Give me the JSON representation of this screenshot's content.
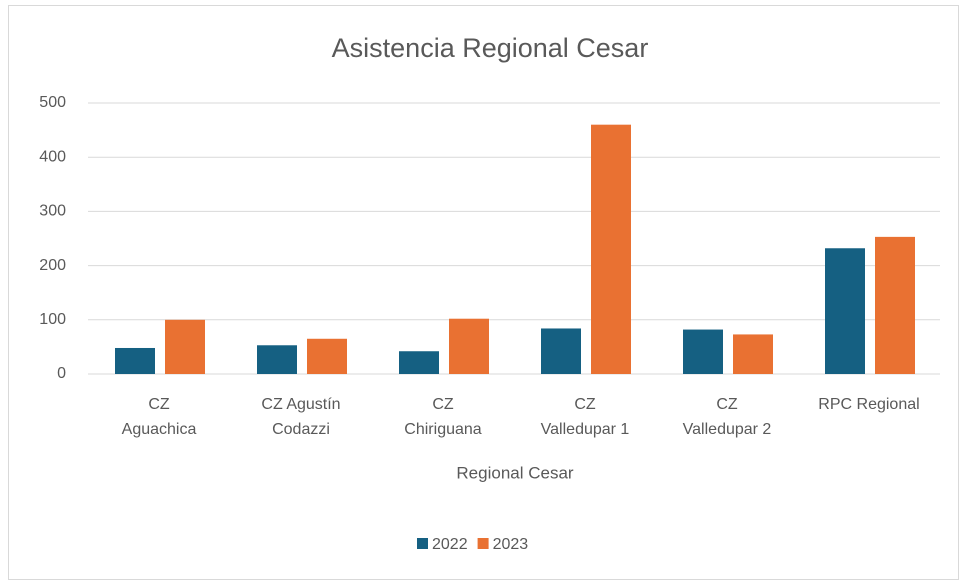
{
  "chart_data": {
    "type": "bar",
    "title": "Asistencia Regional Cesar",
    "x_label": "Regional Cesar",
    "categories": [
      "CZ\nAguachica",
      "CZ Agustín\nCodazzi",
      "CZ\nChiriguana",
      "CZ\nValledupar 1",
      "CZ\nValledupar 2",
      "RPC Regional"
    ],
    "series": [
      {
        "name": "2022",
        "color": "#156082",
        "values": [
          48,
          53,
          42,
          84,
          82,
          232
        ]
      },
      {
        "name": "2023",
        "color": "#E97132",
        "values": [
          100,
          65,
          102,
          460,
          73,
          253
        ]
      }
    ],
    "ylim": [
      0,
      500
    ],
    "yticks": [
      0,
      100,
      200,
      300,
      400,
      500
    ],
    "grid": true,
    "legend": "bottom"
  }
}
